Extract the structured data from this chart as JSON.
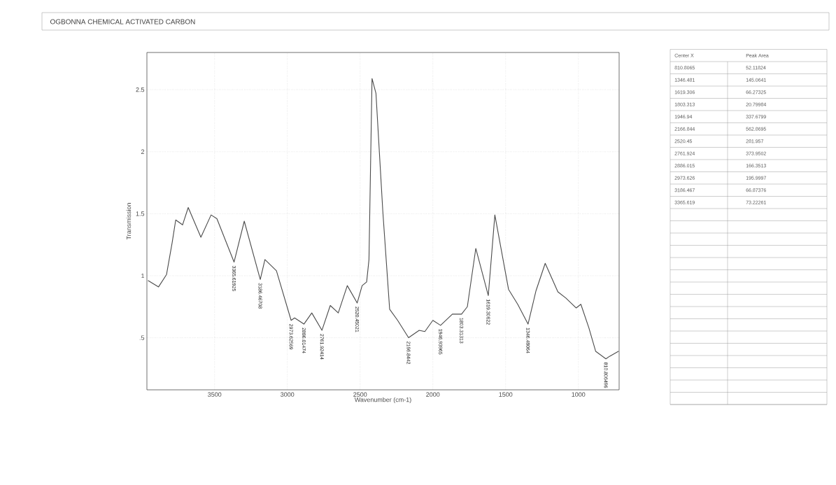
{
  "chart_data": [
    {
      "type": "line",
      "title": "OGBONNA CHEMICAL  ACTIVATED CARBON",
      "xlabel": "Wavenumber (cm-1)",
      "ylabel": "Transmission",
      "xlim": [
        3965,
        720
      ],
      "ylim": [
        0.08,
        2.8
      ],
      "xticks": [
        3500,
        3000,
        2500,
        2000,
        1500,
        1000
      ],
      "yticks": [
        {
          "value": 0.5,
          "label": ".5"
        },
        1,
        1.5,
        2,
        2.5
      ],
      "grid": true,
      "series": [
        {
          "color": "#4a4a4a",
          "x": [
            3956,
            3885,
            3830,
            3791,
            3767,
            3720,
            3681,
            3594,
            3524,
            3484,
            3366,
            3296,
            3186,
            3154,
            3075,
            2974,
            2950,
            2886,
            2832,
            2762,
            2705,
            2650,
            2588,
            2520,
            2486,
            2455,
            2439,
            2418,
            2391,
            2344,
            2297,
            2242,
            2167,
            2094,
            2055,
            2000,
            1947,
            1866,
            1803,
            1763,
            1705,
            1619,
            1574,
            1480,
            1417,
            1346,
            1291,
            1228,
            1141,
            1086,
            1015,
            983,
            928,
            881,
            811,
            786,
            725
          ],
          "values": [
            0.96,
            0.91,
            1.01,
            1.27,
            1.45,
            1.41,
            1.55,
            1.31,
            1.49,
            1.46,
            1.11,
            1.44,
            0.97,
            1.13,
            1.04,
            0.64,
            0.66,
            0.61,
            0.7,
            0.56,
            0.76,
            0.7,
            0.92,
            0.78,
            0.92,
            0.95,
            1.13,
            2.59,
            2.47,
            1.52,
            0.73,
            0.64,
            0.5,
            0.56,
            0.55,
            0.64,
            0.6,
            0.69,
            0.69,
            0.75,
            1.22,
            0.84,
            1.49,
            0.89,
            0.77,
            0.61,
            0.88,
            1.1,
            0.87,
            0.82,
            0.74,
            0.77,
            0.58,
            0.39,
            0.33,
            0.35,
            0.39
          ]
        }
      ],
      "annotations": [
        {
          "text": "3365.61925",
          "x": 3366,
          "y": 1.11
        },
        {
          "text": "3186.46708",
          "x": 3186,
          "y": 0.97
        },
        {
          "text": "2973.62569",
          "x": 2974,
          "y": 0.64
        },
        {
          "text": "2886.01474",
          "x": 2886,
          "y": 0.61
        },
        {
          "text": "2761.92414",
          "x": 2762,
          "y": 0.56
        },
        {
          "text": "2520.45021",
          "x": 2520,
          "y": 0.78
        },
        {
          "text": "2166.8442",
          "x": 2167,
          "y": 0.5
        },
        {
          "text": "1946.93965",
          "x": 1947,
          "y": 0.6
        },
        {
          "text": "1803.31313",
          "x": 1803,
          "y": 0.69
        },
        {
          "text": "1619.30622",
          "x": 1619,
          "y": 0.84
        },
        {
          "text": "1346.48064",
          "x": 1346,
          "y": 0.61
        },
        {
          "text": "810.806496",
          "x": 811,
          "y": 0.33
        }
      ]
    },
    {
      "type": "other",
      "annotations": [
        "Center X",
        "Peak Area",
        "810.8065",
        "52.11824",
        "1346.481",
        "145.0641",
        "1619.306",
        "66.27325",
        "1803.313",
        "20.79984",
        "1946.94",
        "337.6799",
        "2166.844",
        "562.8695",
        "2520.45",
        "281.957",
        "2761.924",
        "373.9502",
        "2886.015",
        "166.3513",
        "2973.626",
        "195.9997",
        "3186.467",
        "66.87376",
        "3365.619",
        "73.22261"
      ]
    }
  ]
}
